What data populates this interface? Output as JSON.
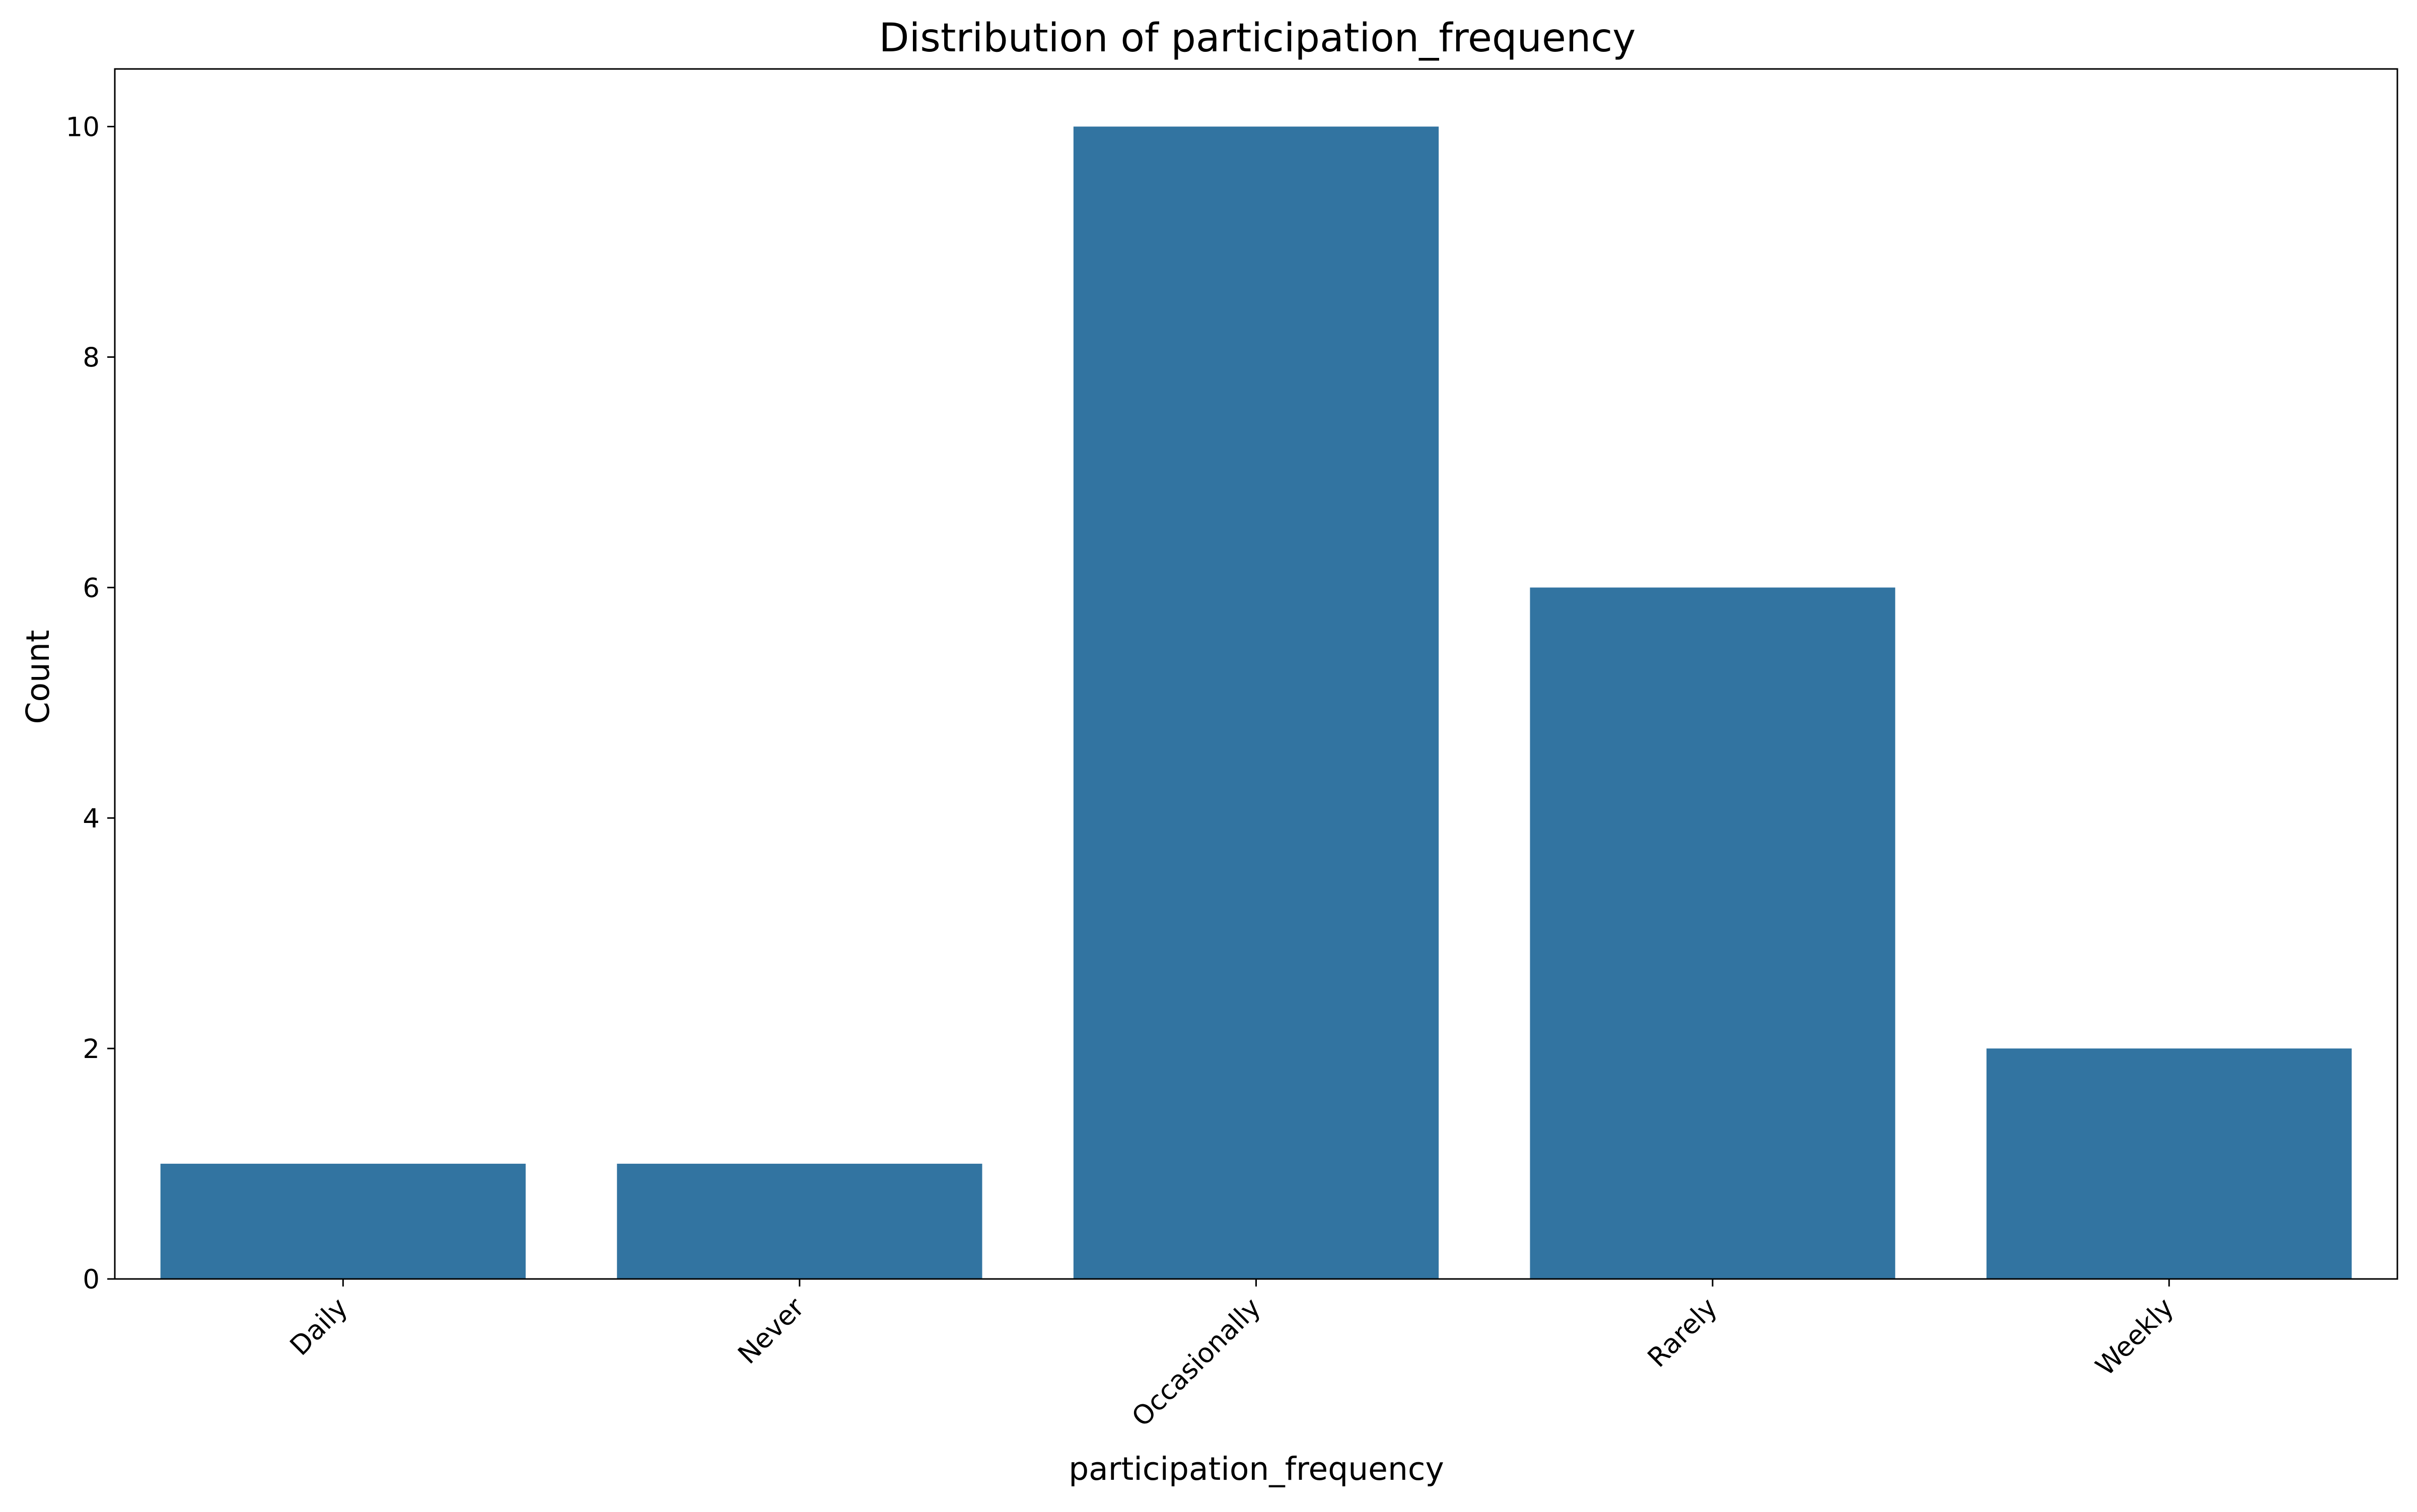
{
  "chart_data": {
    "type": "bar",
    "title": "Distribution of participation_frequency",
    "xlabel": "participation_frequency",
    "ylabel": "Count",
    "categories": [
      "Daily",
      "Never",
      "Occasionally",
      "Rarely",
      "Weekly"
    ],
    "values": [
      1,
      1,
      10,
      6,
      2
    ],
    "ylim": [
      0,
      10.5
    ],
    "yticks": [
      0,
      2,
      4,
      6,
      8,
      10
    ],
    "ytick_labels": [
      "0",
      "2",
      "4",
      "6",
      "8",
      "10"
    ],
    "grid": false,
    "legend": "none",
    "bar_color": "#3274a1",
    "xtick_rotation": "45 degrees"
  }
}
